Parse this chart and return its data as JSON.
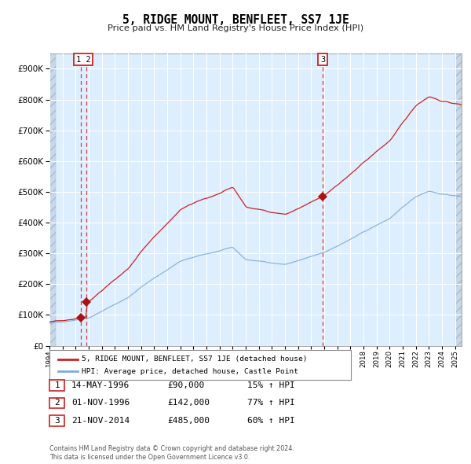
{
  "title": "5, RIDGE MOUNT, BENFLEET, SS7 1JE",
  "subtitle": "Price paid vs. HM Land Registry's House Price Index (HPI)",
  "hpi_color": "#7aaadd",
  "price_color": "#cc2222",
  "bg_color": "#ddeeff",
  "ylim": [
    0,
    950000
  ],
  "yticks": [
    0,
    100000,
    200000,
    300000,
    400000,
    500000,
    600000,
    700000,
    800000,
    900000
  ],
  "sale_dates": [
    "14-MAY-1996",
    "01-NOV-1996",
    "21-NOV-2014"
  ],
  "sale_prices": [
    90000,
    142000,
    485000
  ],
  "sale_hpi_pct": [
    "15% ↑ HPI",
    "77% ↑ HPI",
    "60% ↑ HPI"
  ],
  "sale_years": [
    1996.37,
    1996.84,
    2014.89
  ],
  "sale_labels": [
    "1",
    "2",
    "3"
  ],
  "legend_line1": "5, RIDGE MOUNT, BENFLEET, SS7 1JE (detached house)",
  "legend_line2": "HPI: Average price, detached house, Castle Point",
  "footer": "Contains HM Land Registry data © Crown copyright and database right 2024.\nThis data is licensed under the Open Government Licence v3.0.",
  "xmin": 1994.0,
  "xmax": 2025.5,
  "hatch_left_end": 1994.5,
  "hatch_right_start": 2025.0
}
